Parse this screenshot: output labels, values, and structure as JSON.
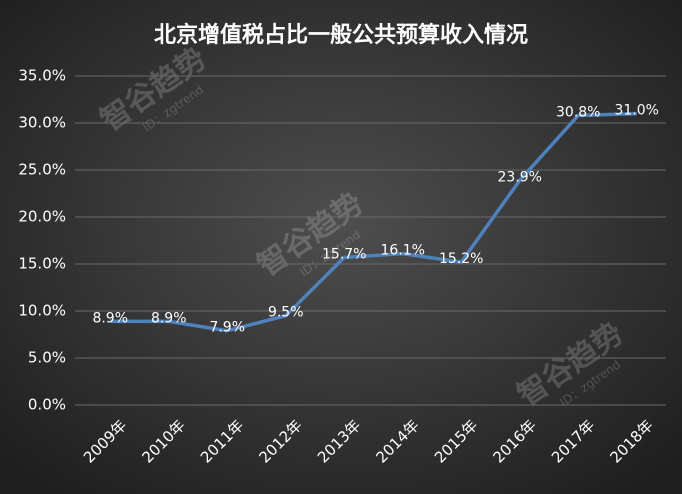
{
  "chart_data": {
    "type": "line",
    "title": "北京增值税占比一般公共预算收入情况",
    "categories": [
      "2009年",
      "2010年",
      "2011年",
      "2012年",
      "2013年",
      "2014年",
      "2015年",
      "2016年",
      "2017年",
      "2018年"
    ],
    "series": [
      {
        "color": "#4f81bd",
        "values": [
          8.9,
          8.9,
          7.9,
          9.5,
          15.7,
          16.1,
          15.2,
          23.9,
          30.8,
          31.0
        ],
        "value_labels": [
          "8.9%",
          "8.9%",
          "7.9%",
          "9.5%",
          "15.7%",
          "16.1%",
          "15.2%",
          "23.9%",
          "30.8%",
          "31.0%"
        ]
      }
    ],
    "ylim": [
      0,
      35
    ],
    "yticks": [
      {
        "value": 0,
        "label": "0.0%"
      },
      {
        "value": 5,
        "label": "5.0%"
      },
      {
        "value": 10,
        "label": "10.0%"
      },
      {
        "value": 15,
        "label": "15.0%"
      },
      {
        "value": 20,
        "label": "20.0%"
      },
      {
        "value": 25,
        "label": "25.0%"
      },
      {
        "value": 30,
        "label": "30.0%"
      },
      {
        "value": 35,
        "label": "35.0%"
      }
    ],
    "grid": true,
    "watermarks": [
      {
        "text": "智谷趋势",
        "id": "ID：zgtrend"
      },
      {
        "text": "智谷趋势",
        "id": "ID：zgtrend"
      },
      {
        "text": "智谷趋势",
        "id": "ID：zgtrend"
      }
    ]
  }
}
